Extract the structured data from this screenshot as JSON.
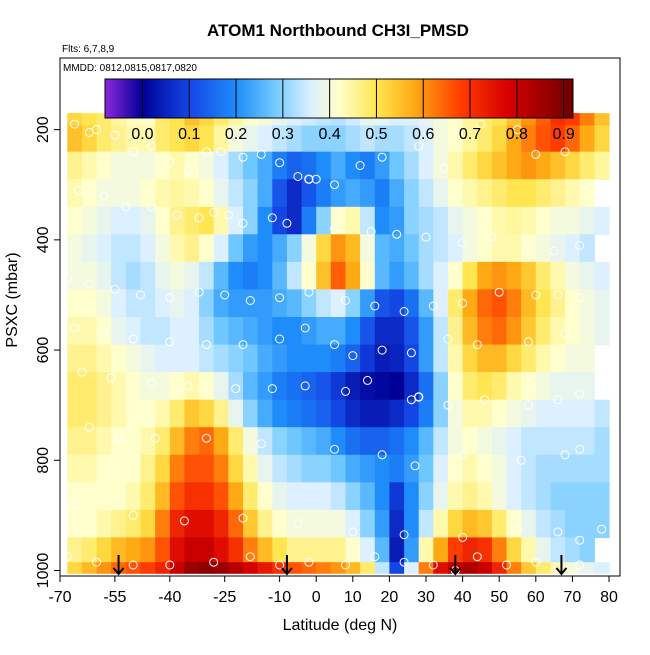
{
  "chart_data": {
    "type": "heatmap",
    "title": "ATOM1 Northbound CH3I_PMSD",
    "subtitle_flights": "Flts: 6,7,8,9",
    "subtitle_dates": "MMDD: 0812,0815,0817,0820",
    "xlabel": "Latitude (deg N)",
    "ylabel": "PSXC (mbar)",
    "x_ticks": [
      -70,
      -55,
      -40,
      -25,
      -10,
      0,
      10,
      20,
      30,
      40,
      50,
      60,
      70,
      80
    ],
    "x_tick_labels": [
      "-70",
      "-55",
      "-40",
      "-25",
      "-10",
      "0",
      "10",
      "20",
      "30",
      "40",
      "50",
      "60",
      "70",
      "80"
    ],
    "xlim": [
      -70,
      83
    ],
    "y_ticks": [
      200,
      400,
      600,
      800,
      1000
    ],
    "y_tick_labels": [
      "200",
      "400",
      "600",
      "800",
      "1000"
    ],
    "ylim": [
      1010,
      70
    ],
    "colorbar": {
      "range": [
        -0.08,
        0.92
      ],
      "ticks": [
        0.0,
        0.1,
        0.2,
        0.3,
        0.4,
        0.5,
        0.6,
        0.7,
        0.8,
        0.9
      ],
      "tick_labels": [
        "0.0",
        "0.1",
        "0.2",
        "0.3",
        "0.4",
        "0.5",
        "0.6",
        "0.7",
        "0.8",
        "0.9"
      ]
    },
    "grid": {
      "lat_start": -68,
      "lat_end": 80,
      "lat_step": 4,
      "pressure_levels": [
        170,
        215,
        265,
        315,
        365,
        415,
        465,
        515,
        565,
        615,
        665,
        715,
        765,
        815,
        865,
        915,
        965,
        1005
      ],
      "values": [
        [
          0.52,
          0.5,
          0.48,
          0.45,
          0.43,
          0.42,
          0.48,
          0.5,
          0.55,
          0.52,
          0.48,
          0.45,
          0.42,
          0.4,
          0.38,
          0.36,
          0.35,
          0.34,
          0.33,
          0.35,
          0.38,
          0.38,
          0.36,
          0.36,
          0.38,
          0.4,
          0.42,
          0.45,
          0.48,
          0.5,
          0.55,
          0.6,
          0.65,
          0.7,
          0.68,
          0.62,
          0.55,
          0.5
        ],
        [
          0.55,
          0.52,
          0.48,
          0.46,
          0.44,
          0.44,
          0.48,
          0.5,
          0.52,
          0.5,
          0.45,
          0.4,
          0.38,
          0.36,
          0.34,
          0.32,
          0.3,
          0.3,
          0.3,
          0.32,
          0.34,
          0.32,
          0.32,
          0.34,
          0.36,
          0.4,
          0.42,
          0.45,
          0.48,
          0.52,
          0.58,
          0.62,
          0.66,
          0.68,
          0.64,
          0.58,
          0.52,
          0.48
        ],
        [
          0.46,
          0.44,
          0.42,
          0.4,
          0.4,
          0.4,
          0.42,
          0.44,
          0.42,
          0.4,
          0.36,
          0.32,
          0.28,
          0.24,
          0.18,
          0.14,
          0.16,
          0.2,
          0.24,
          0.2,
          0.18,
          0.22,
          0.28,
          0.32,
          0.36,
          0.4,
          0.44,
          0.48,
          0.52,
          0.55,
          0.58,
          0.6,
          0.58,
          0.55,
          0.52,
          0.48,
          0.45,
          0.42
        ],
        [
          0.44,
          0.42,
          0.4,
          0.4,
          0.4,
          0.42,
          0.44,
          0.45,
          0.44,
          0.42,
          0.38,
          0.34,
          0.3,
          0.24,
          0.12,
          0.06,
          0.12,
          0.18,
          0.22,
          0.24,
          0.22,
          0.18,
          0.24,
          0.3,
          0.34,
          0.38,
          0.42,
          0.44,
          0.46,
          0.48,
          0.5,
          0.5,
          0.48,
          0.46,
          0.44,
          0.42,
          0.4,
          0.38
        ],
        [
          0.42,
          0.4,
          0.38,
          0.36,
          0.36,
          0.38,
          0.42,
          0.46,
          0.48,
          0.5,
          0.44,
          0.36,
          0.3,
          0.2,
          0.1,
          0.06,
          0.18,
          0.3,
          0.42,
          0.44,
          0.34,
          0.2,
          0.22,
          0.3,
          0.32,
          0.34,
          0.38,
          0.4,
          0.42,
          0.44,
          0.45,
          0.44,
          0.42,
          0.4,
          0.4,
          0.38,
          0.36,
          0.34
        ],
        [
          0.4,
          0.38,
          0.36,
          0.34,
          0.34,
          0.36,
          0.4,
          0.44,
          0.46,
          0.42,
          0.36,
          0.28,
          0.22,
          0.2,
          0.24,
          0.3,
          0.4,
          0.52,
          0.6,
          0.56,
          0.4,
          0.26,
          0.24,
          0.28,
          0.32,
          0.34,
          0.36,
          0.4,
          0.42,
          0.44,
          0.44,
          0.42,
          0.4,
          0.38,
          0.36,
          0.34,
          0.32,
          0.3
        ],
        [
          0.4,
          0.4,
          0.38,
          0.34,
          0.32,
          0.34,
          0.38,
          0.4,
          0.38,
          0.34,
          0.26,
          0.2,
          0.18,
          0.2,
          0.26,
          0.34,
          0.42,
          0.55,
          0.65,
          0.58,
          0.42,
          0.26,
          0.22,
          0.26,
          0.32,
          0.36,
          0.42,
          0.5,
          0.58,
          0.6,
          0.58,
          0.54,
          0.48,
          0.44,
          0.4,
          0.38,
          0.36,
          0.34
        ],
        [
          0.42,
          0.42,
          0.4,
          0.36,
          0.34,
          0.34,
          0.36,
          0.38,
          0.36,
          0.3,
          0.24,
          0.22,
          0.22,
          0.22,
          0.24,
          0.26,
          0.3,
          0.34,
          0.36,
          0.3,
          0.22,
          0.12,
          0.1,
          0.16,
          0.26,
          0.36,
          0.48,
          0.58,
          0.64,
          0.66,
          0.62,
          0.56,
          0.5,
          0.46,
          0.42,
          0.4,
          0.38,
          0.36
        ],
        [
          0.44,
          0.44,
          0.42,
          0.38,
          0.36,
          0.34,
          0.34,
          0.36,
          0.36,
          0.32,
          0.28,
          0.26,
          0.24,
          0.22,
          0.2,
          0.2,
          0.22,
          0.24,
          0.24,
          0.2,
          0.12,
          0.06,
          0.06,
          0.12,
          0.22,
          0.34,
          0.46,
          0.56,
          0.62,
          0.64,
          0.6,
          0.54,
          0.48,
          0.44,
          0.42,
          0.4,
          0.38,
          0.36
        ],
        [
          0.46,
          0.46,
          0.44,
          0.42,
          0.4,
          0.38,
          0.36,
          0.36,
          0.36,
          0.34,
          0.32,
          0.3,
          0.28,
          0.24,
          0.22,
          0.2,
          0.2,
          0.2,
          0.18,
          0.14,
          0.08,
          0.04,
          0.05,
          0.1,
          0.22,
          0.34,
          0.44,
          0.52,
          0.56,
          0.56,
          0.52,
          0.48,
          0.44,
          0.42,
          0.4,
          0.4,
          0.38,
          0.36
        ],
        [
          0.48,
          0.48,
          0.46,
          0.44,
          0.42,
          0.4,
          0.4,
          0.42,
          0.44,
          0.42,
          0.38,
          0.32,
          0.26,
          0.22,
          0.18,
          0.16,
          0.14,
          0.12,
          0.08,
          0.04,
          0.02,
          0.01,
          0.0,
          0.06,
          0.16,
          0.3,
          0.42,
          0.48,
          0.5,
          0.48,
          0.44,
          0.42,
          0.4,
          0.38,
          0.38,
          0.38,
          0.36,
          0.34
        ],
        [
          0.48,
          0.48,
          0.46,
          0.44,
          0.42,
          0.42,
          0.44,
          0.48,
          0.54,
          0.52,
          0.46,
          0.38,
          0.3,
          0.24,
          0.2,
          0.18,
          0.16,
          0.14,
          0.1,
          0.06,
          0.04,
          0.04,
          0.06,
          0.1,
          0.18,
          0.3,
          0.4,
          0.44,
          0.44,
          0.42,
          0.4,
          0.38,
          0.36,
          0.36,
          0.36,
          0.36,
          0.34,
          0.34
        ],
        [
          0.46,
          0.46,
          0.44,
          0.42,
          0.42,
          0.44,
          0.48,
          0.56,
          0.62,
          0.64,
          0.58,
          0.48,
          0.4,
          0.34,
          0.3,
          0.28,
          0.26,
          0.24,
          0.2,
          0.16,
          0.14,
          0.14,
          0.16,
          0.2,
          0.26,
          0.34,
          0.4,
          0.42,
          0.4,
          0.38,
          0.36,
          0.34,
          0.34,
          0.34,
          0.34,
          0.34,
          0.32,
          0.32
        ],
        [
          0.44,
          0.44,
          0.42,
          0.42,
          0.42,
          0.46,
          0.52,
          0.62,
          0.66,
          0.66,
          0.62,
          0.52,
          0.44,
          0.38,
          0.34,
          0.32,
          0.3,
          0.3,
          0.28,
          0.24,
          0.22,
          0.2,
          0.18,
          0.22,
          0.28,
          0.36,
          0.42,
          0.44,
          0.42,
          0.4,
          0.36,
          0.34,
          0.32,
          0.32,
          0.32,
          0.32,
          0.32,
          0.3
        ],
        [
          0.42,
          0.42,
          0.42,
          0.42,
          0.44,
          0.48,
          0.56,
          0.66,
          0.7,
          0.7,
          0.66,
          0.58,
          0.48,
          0.42,
          0.38,
          0.36,
          0.36,
          0.36,
          0.34,
          0.3,
          0.26,
          0.2,
          0.08,
          0.2,
          0.3,
          0.38,
          0.44,
          0.46,
          0.44,
          0.4,
          0.36,
          0.34,
          0.32,
          0.3,
          0.3,
          0.3,
          0.3,
          0.3
        ],
        [
          0.42,
          0.42,
          0.44,
          0.46,
          0.48,
          0.52,
          0.62,
          0.72,
          0.76,
          0.76,
          0.72,
          0.64,
          0.54,
          0.46,
          0.42,
          0.4,
          0.4,
          0.4,
          0.4,
          0.36,
          0.3,
          0.22,
          0.06,
          0.2,
          0.34,
          0.44,
          0.52,
          0.56,
          0.54,
          0.48,
          0.42,
          0.38,
          0.34,
          0.32,
          0.3,
          0.3,
          0.3,
          0.3
        ],
        [
          0.46,
          0.48,
          0.52,
          0.56,
          0.58,
          0.6,
          0.66,
          0.76,
          0.8,
          0.8,
          0.76,
          0.7,
          0.62,
          0.56,
          0.5,
          0.46,
          0.46,
          0.46,
          0.46,
          0.42,
          0.36,
          0.26,
          0.04,
          0.22,
          0.44,
          0.58,
          0.68,
          0.72,
          0.7,
          0.62,
          0.52,
          0.44,
          0.38,
          0.34,
          0.32,
          0.3,
          0.3,
          0.3
        ],
        [
          0.52,
          0.56,
          0.6,
          0.64,
          0.66,
          0.68,
          0.72,
          0.8,
          0.86,
          0.88,
          0.86,
          0.82,
          0.78,
          0.74,
          0.7,
          0.66,
          0.64,
          0.62,
          0.6,
          0.56,
          0.48,
          0.34,
          0.1,
          0.36,
          0.62,
          0.76,
          0.82,
          0.84,
          0.8,
          0.72,
          0.62,
          0.54,
          0.48,
          0.44,
          0.4,
          0.38,
          0.36,
          0.36
        ]
      ],
      "blank_cells": [
        [
          3,
          36
        ],
        [
          5,
          36
        ],
        [
          9,
          36
        ],
        [
          10,
          36
        ],
        [
          16,
          36
        ],
        [
          16,
          37
        ],
        [
          17,
          37
        ]
      ]
    },
    "flight_markers": [
      [
        -66,
        190
      ],
      [
        -62,
        205
      ],
      [
        -60,
        200
      ],
      [
        -55,
        210
      ],
      [
        -50,
        240
      ],
      [
        -45,
        230
      ],
      [
        -40,
        260
      ],
      [
        -35,
        275
      ],
      [
        -30,
        240
      ],
      [
        -26,
        240
      ],
      [
        -20,
        250
      ],
      [
        -15,
        245
      ],
      [
        -10,
        260
      ],
      [
        -5,
        285
      ],
      [
        0,
        290
      ],
      [
        5,
        300
      ],
      [
        12,
        265
      ],
      [
        18,
        250
      ],
      [
        28,
        230
      ],
      [
        35,
        270
      ],
      [
        45,
        190
      ],
      [
        55,
        200
      ],
      [
        60,
        245
      ],
      [
        68,
        240
      ],
      [
        -65,
        310
      ],
      [
        -58,
        320
      ],
      [
        -52,
        340
      ],
      [
        -45,
        340
      ],
      [
        -38,
        355
      ],
      [
        -32,
        360
      ],
      [
        -28,
        350
      ],
      [
        -24,
        355
      ],
      [
        -20,
        370
      ],
      [
        -12,
        360
      ],
      [
        -8,
        370
      ],
      [
        5,
        380
      ],
      [
        15,
        385
      ],
      [
        22,
        390
      ],
      [
        30,
        395
      ],
      [
        40,
        405
      ],
      [
        48,
        395
      ],
      [
        58,
        410
      ],
      [
        65,
        420
      ],
      [
        72,
        410
      ],
      [
        -68,
        470
      ],
      [
        -62,
        480
      ],
      [
        -55,
        490
      ],
      [
        -48,
        500
      ],
      [
        -40,
        505
      ],
      [
        -32,
        495
      ],
      [
        -25,
        500
      ],
      [
        -18,
        510
      ],
      [
        -10,
        505
      ],
      [
        -2,
        495
      ],
      [
        8,
        510
      ],
      [
        16,
        520
      ],
      [
        24,
        530
      ],
      [
        32,
        520
      ],
      [
        40,
        515
      ],
      [
        50,
        495
      ],
      [
        60,
        500
      ],
      [
        66,
        500
      ],
      [
        72,
        505
      ],
      [
        -66,
        560
      ],
      [
        -58,
        570
      ],
      [
        -50,
        580
      ],
      [
        -40,
        585
      ],
      [
        -30,
        590
      ],
      [
        -20,
        590
      ],
      [
        -10,
        580
      ],
      [
        -3,
        560
      ],
      [
        5,
        590
      ],
      [
        10,
        610
      ],
      [
        18,
        600
      ],
      [
        26,
        605
      ],
      [
        36,
        580
      ],
      [
        44,
        590
      ],
      [
        58,
        585
      ],
      [
        68,
        570
      ],
      [
        -64,
        640
      ],
      [
        -56,
        650
      ],
      [
        -45,
        660
      ],
      [
        -35,
        665
      ],
      [
        -22,
        670
      ],
      [
        -12,
        670
      ],
      [
        -3,
        665
      ],
      [
        8,
        675
      ],
      [
        14,
        655
      ],
      [
        26,
        690
      ],
      [
        36,
        700
      ],
      [
        46,
        690
      ],
      [
        58,
        700
      ],
      [
        66,
        690
      ],
      [
        72,
        680
      ],
      [
        -62,
        740
      ],
      [
        -54,
        760
      ],
      [
        -44,
        760
      ],
      [
        -30,
        760
      ],
      [
        -15,
        770
      ],
      [
        5,
        780
      ],
      [
        18,
        790
      ],
      [
        27,
        810
      ],
      [
        40,
        790
      ],
      [
        56,
        800
      ],
      [
        68,
        790
      ],
      [
        72,
        780
      ],
      [
        -66,
        880
      ],
      [
        -50,
        900
      ],
      [
        -36,
        910
      ],
      [
        -20,
        905
      ],
      [
        -5,
        915
      ],
      [
        10,
        930
      ],
      [
        24,
        935
      ],
      [
        40,
        940
      ],
      [
        55,
        925
      ],
      [
        66,
        930
      ],
      [
        72,
        945
      ],
      [
        78,
        925
      ],
      [
        -68,
        975
      ],
      [
        -60,
        985
      ],
      [
        -50,
        990
      ],
      [
        -40,
        990
      ],
      [
        -28,
        985
      ],
      [
        -18,
        975
      ],
      [
        -10,
        990
      ],
      [
        -2,
        985
      ],
      [
        8,
        990
      ],
      [
        16,
        975
      ],
      [
        24,
        985
      ],
      [
        32,
        990
      ],
      [
        38,
        1000
      ],
      [
        44,
        975
      ],
      [
        52,
        990
      ],
      [
        60,
        985
      ],
      [
        66,
        995
      ],
      [
        72,
        990
      ]
    ],
    "highlight_markers": [
      [
        -2,
        290
      ],
      [
        28,
        685
      ]
    ],
    "arrow_latitudes": [
      -54,
      -8,
      38,
      67
    ]
  }
}
